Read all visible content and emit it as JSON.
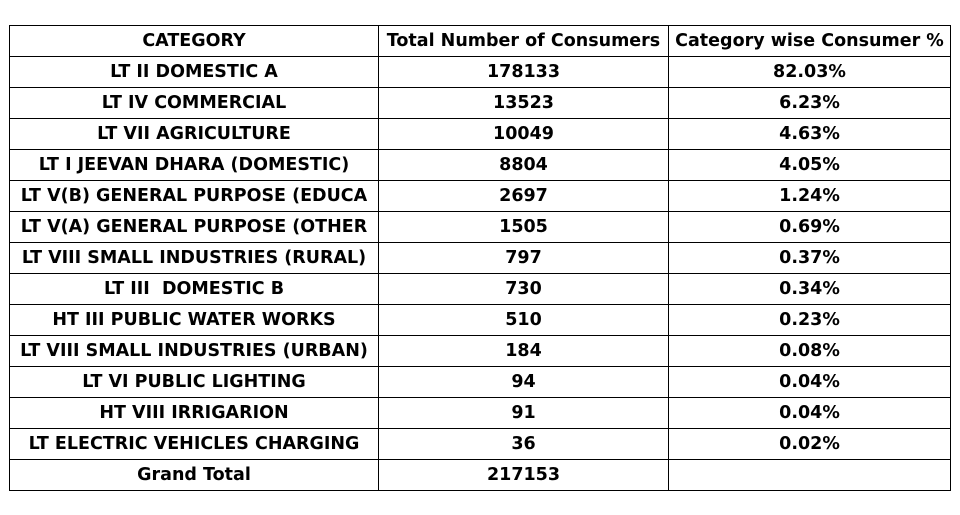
{
  "table": {
    "headers": [
      "CATEGORY",
      "Total Number of Consumers",
      "Category wise Consumer %"
    ],
    "rows": [
      [
        "LT II DOMESTIC A",
        "178133",
        "82.03%"
      ],
      [
        "LT IV COMMERCIAL",
        "13523",
        "6.23%"
      ],
      [
        "LT VII AGRICULTURE",
        "10049",
        "4.63%"
      ],
      [
        "LT I JEEVAN DHARA (DOMESTIC)",
        "8804",
        "4.05%"
      ],
      [
        "LT V(B) GENERAL PURPOSE (EDUCA",
        "2697",
        "1.24%"
      ],
      [
        "LT V(A) GENERAL PURPOSE (OTHER",
        "1505",
        "0.69%"
      ],
      [
        "LT VIII SMALL INDUSTRIES (RURAL)",
        "797",
        "0.37%"
      ],
      [
        "LT III  DOMESTIC B",
        "730",
        "0.34%"
      ],
      [
        "HT III PUBLIC WATER WORKS",
        "510",
        "0.23%"
      ],
      [
        "LT VIII SMALL INDUSTRIES (URBAN)",
        "184",
        "0.08%"
      ],
      [
        "LT VI PUBLIC LIGHTING",
        "94",
        "0.04%"
      ],
      [
        "HT VIII IRRIGARION",
        "91",
        "0.04%"
      ],
      [
        "LT ELECTRIC VEHICLES CHARGING",
        "36",
        "0.02%"
      ]
    ],
    "total": [
      "Grand Total",
      "217153",
      ""
    ]
  }
}
